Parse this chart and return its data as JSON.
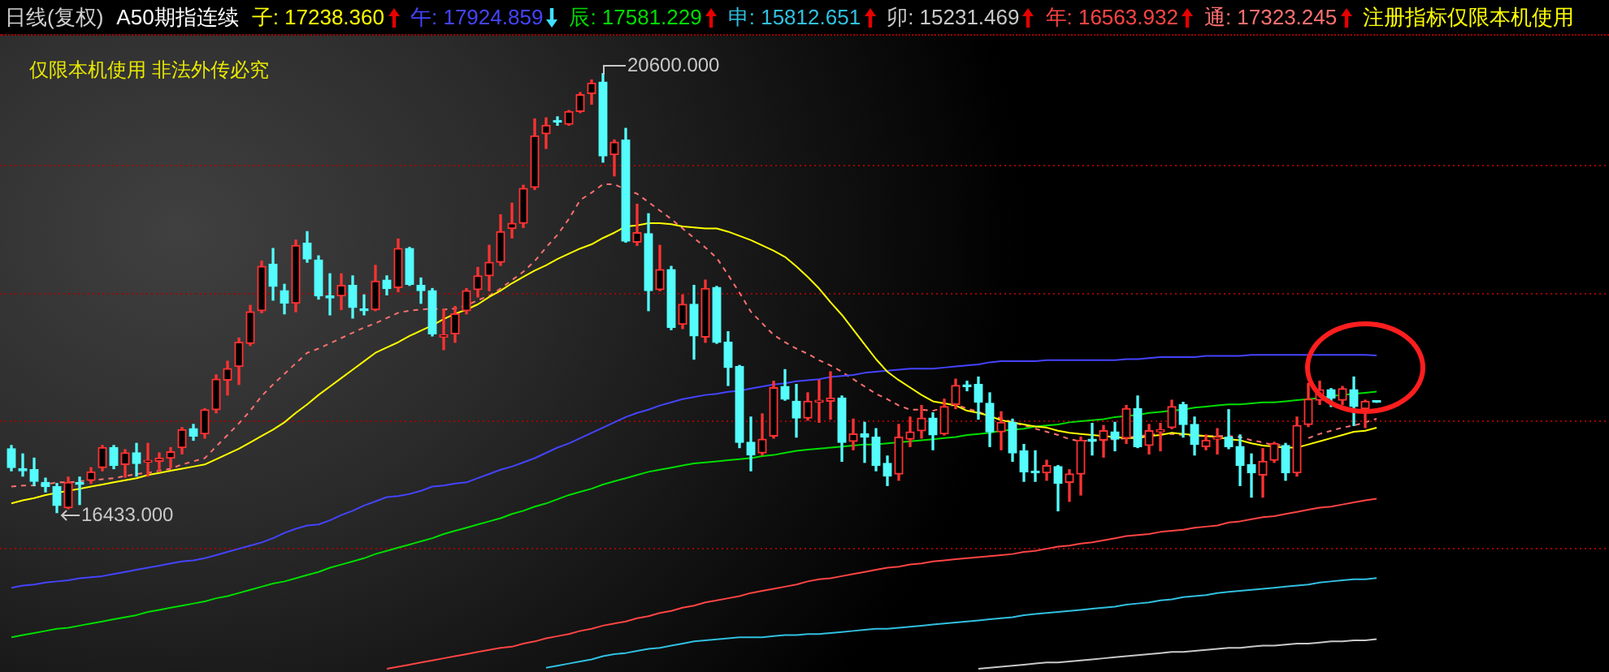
{
  "chart_data": {
    "type": "candlestick",
    "title": "日线(复权)",
    "subtitle": "A50期指连续",
    "categories": [
      null,
      null,
      null,
      null,
      null,
      null,
      null,
      null,
      null,
      null,
      null,
      null,
      null,
      null,
      null,
      null,
      null,
      null,
      null,
      null,
      null,
      null,
      null,
      null,
      null,
      null,
      null,
      null,
      null,
      null,
      null,
      null,
      null,
      null,
      null,
      null,
      null,
      null,
      null,
      null,
      null,
      null,
      null,
      null,
      null,
      null,
      null,
      null,
      null,
      null,
      null,
      null,
      null,
      null,
      null,
      null,
      null,
      null,
      null,
      null,
      null,
      null,
      null,
      null,
      null,
      null,
      null,
      null,
      null,
      null,
      null,
      null,
      null,
      null,
      null,
      null,
      null,
      null,
      null,
      null,
      null,
      null,
      null,
      null,
      null,
      null,
      null,
      null,
      null,
      null,
      null,
      null,
      null,
      null,
      null,
      null,
      null,
      null,
      null,
      null,
      null,
      null,
      null,
      null,
      null,
      null,
      null,
      null,
      null,
      null,
      null,
      null,
      null,
      null,
      null,
      null,
      null,
      null,
      null,
      null,
      null
    ],
    "ohlc": [
      [
        17040,
        17070,
        16830,
        16860
      ],
      [
        16850,
        16990,
        16780,
        16830
      ],
      [
        16840,
        16950,
        16690,
        16730
      ],
      [
        16720,
        16760,
        16630,
        16680
      ],
      [
        16680,
        16710,
        16433,
        16500
      ],
      [
        16480,
        16770,
        16470,
        16720
      ],
      [
        16720,
        16770,
        16510,
        16700
      ],
      [
        16740,
        16860,
        16710,
        16820
      ],
      [
        16860,
        17070,
        16830,
        17050
      ],
      [
        17050,
        17070,
        16850,
        16880
      ],
      [
        16890,
        17030,
        16770,
        17000
      ],
      [
        17000,
        17090,
        16780,
        16900
      ],
      [
        16910,
        17090,
        16780,
        16930
      ],
      [
        16920,
        17000,
        16830,
        16950
      ],
      [
        16950,
        17050,
        16860,
        17010
      ],
      [
        17050,
        17240,
        16990,
        17220
      ],
      [
        17230,
        17270,
        17120,
        17160
      ],
      [
        17180,
        17420,
        17140,
        17410
      ],
      [
        17410,
        17740,
        17380,
        17700
      ],
      [
        17690,
        17870,
        17550,
        17800
      ],
      [
        17820,
        18090,
        17650,
        18050
      ],
      [
        18040,
        18400,
        18020,
        18340
      ],
      [
        18350,
        18820,
        18330,
        18770
      ],
      [
        18790,
        18940,
        18450,
        18580
      ],
      [
        18540,
        18600,
        18320,
        18420
      ],
      [
        18420,
        19020,
        18340,
        18970
      ],
      [
        18990,
        19100,
        18810,
        18840
      ],
      [
        18830,
        18870,
        18460,
        18490
      ],
      [
        18490,
        18700,
        18310,
        18470
      ],
      [
        18490,
        18700,
        18360,
        18590
      ],
      [
        18590,
        18680,
        18280,
        18380
      ],
      [
        18360,
        18500,
        18310,
        18350
      ],
      [
        18360,
        18780,
        18350,
        18630
      ],
      [
        18640,
        18680,
        18500,
        18560
      ],
      [
        18570,
        19030,
        18530,
        18940
      ],
      [
        18940,
        18950,
        18590,
        18600
      ],
      [
        18590,
        18660,
        18420,
        18540
      ],
      [
        18540,
        18560,
        18110,
        18130
      ],
      [
        18100,
        18360,
        17980,
        18120
      ],
      [
        18130,
        18390,
        18050,
        18320
      ],
      [
        18350,
        18560,
        18320,
        18540
      ],
      [
        18550,
        18760,
        18480,
        18680
      ],
      [
        18680,
        18970,
        18540,
        18810
      ],
      [
        18810,
        19260,
        18780,
        19100
      ],
      [
        19130,
        19370,
        19040,
        19180
      ],
      [
        19180,
        19540,
        19140,
        19510
      ],
      [
        19520,
        20170,
        19500,
        20010
      ],
      [
        20030,
        20180,
        19890,
        20110
      ],
      [
        20150,
        20190,
        20110,
        20140
      ],
      [
        20120,
        20250,
        20110,
        20240
      ],
      [
        20240,
        20420,
        20230,
        20400
      ],
      [
        20410,
        20540,
        20310,
        20510
      ],
      [
        20520,
        20600,
        19760,
        19820
      ],
      [
        19830,
        19970,
        19630,
        19950
      ],
      [
        19970,
        20080,
        19000,
        19010
      ],
      [
        19000,
        19360,
        18970,
        19090
      ],
      [
        19080,
        19270,
        18350,
        18540
      ],
      [
        18550,
        18970,
        18540,
        18740
      ],
      [
        18740,
        18770,
        18170,
        18190
      ],
      [
        18220,
        18500,
        18180,
        18410
      ],
      [
        18410,
        18590,
        17890,
        18110
      ],
      [
        18100,
        18640,
        18050,
        18560
      ],
      [
        18570,
        18580,
        18040,
        18050
      ],
      [
        18050,
        18150,
        17640,
        17810
      ],
      [
        17820,
        17830,
        17050,
        17100
      ],
      [
        17100,
        17340,
        16830,
        16980
      ],
      [
        17000,
        17370,
        16980,
        17130
      ],
      [
        17160,
        17680,
        17140,
        17620
      ],
      [
        17630,
        17790,
        17500,
        17510
      ],
      [
        17490,
        17650,
        17150,
        17330
      ],
      [
        17330,
        17570,
        17310,
        17490
      ],
      [
        17480,
        17690,
        17290,
        17500
      ],
      [
        17490,
        17770,
        17320,
        17520
      ],
      [
        17520,
        17540,
        16920,
        17100
      ],
      [
        17110,
        17320,
        17030,
        17180
      ],
      [
        17180,
        17290,
        16910,
        17150
      ],
      [
        17150,
        17230,
        16830,
        16880
      ],
      [
        16900,
        16970,
        16690,
        16780
      ],
      [
        16800,
        17270,
        16740,
        17150
      ],
      [
        17130,
        17340,
        17060,
        17200
      ],
      [
        17210,
        17450,
        17140,
        17330
      ],
      [
        17330,
        17380,
        17030,
        17170
      ],
      [
        17180,
        17510,
        17170,
        17440
      ],
      [
        17460,
        17700,
        17420,
        17640
      ],
      [
        17640,
        17680,
        17590,
        17630
      ],
      [
        17650,
        17720,
        17320,
        17480
      ],
      [
        17470,
        17570,
        17060,
        17200
      ],
      [
        17200,
        17390,
        17030,
        17290
      ],
      [
        17290,
        17320,
        16920,
        17000
      ],
      [
        17020,
        17080,
        16730,
        16820
      ],
      [
        16820,
        17020,
        16730,
        16810
      ],
      [
        16810,
        16930,
        16740,
        16880
      ],
      [
        16870,
        16880,
        16450,
        16710
      ],
      [
        16720,
        16840,
        16540,
        16800
      ],
      [
        16800,
        17150,
        16600,
        17120
      ],
      [
        17130,
        17280,
        16980,
        17110
      ],
      [
        17120,
        17260,
        16960,
        17210
      ],
      [
        17200,
        17290,
        17020,
        17130
      ],
      [
        17140,
        17450,
        17090,
        17420
      ],
      [
        17420,
        17540,
        17050,
        17060
      ],
      [
        17070,
        17270,
        16990,
        17210
      ],
      [
        17200,
        17280,
        17020,
        17220
      ],
      [
        17240,
        17500,
        17230,
        17440
      ],
      [
        17460,
        17480,
        17150,
        17270
      ],
      [
        17270,
        17340,
        16980,
        17080
      ],
      [
        17060,
        17170,
        17030,
        17120
      ],
      [
        17130,
        17230,
        16990,
        17150
      ],
      [
        17150,
        17410,
        17040,
        17060
      ],
      [
        17060,
        17170,
        16690,
        16880
      ],
      [
        16890,
        16990,
        16580,
        16810
      ],
      [
        16790,
        17040,
        16580,
        16920
      ],
      [
        16930,
        17100,
        16910,
        17090
      ],
      [
        17070,
        17090,
        16740,
        16810
      ],
      [
        16810,
        17340,
        16780,
        17260
      ],
      [
        17270,
        17660,
        17250,
        17510
      ],
      [
        17500,
        17680,
        17460,
        17600
      ],
      [
        17600,
        17610,
        17440,
        17520
      ],
      [
        17500,
        17630,
        17460,
        17610
      ],
      [
        17600,
        17720,
        17260,
        17440
      ],
      [
        17420,
        17500,
        17240,
        17490
      ],
      [
        17490,
        17490,
        17480,
        17480
      ]
    ],
    "colors": [
      "#54fcfc",
      "#54fcfc",
      "#54fcfc",
      "#54fcfc",
      "#54fcfc",
      "#ff3232",
      "#54fcfc",
      "#ff3232",
      "#ff3232",
      "#54fcfc",
      "#ff3232",
      "#54fcfc",
      "#ff3232",
      "#ff3232",
      "#ff3232",
      "#ff3232",
      "#54fcfc",
      "#ff3232",
      "#ff3232",
      "#ff3232",
      "#ff3232",
      "#ff3232",
      "#ff3232",
      "#54fcfc",
      "#54fcfc",
      "#ff3232",
      "#54fcfc",
      "#54fcfc",
      "#54fcfc",
      "#ff3232",
      "#54fcfc",
      "#54fcfc",
      "#ff3232",
      "#54fcfc",
      "#ff3232",
      "#54fcfc",
      "#54fcfc",
      "#54fcfc",
      "#ff3232",
      "#ff3232",
      "#ff3232",
      "#ff3232",
      "#ff3232",
      "#ff3232",
      "#ff3232",
      "#ff3232",
      "#ff3232",
      "#ff3232",
      "#54fcfc",
      "#ff3232",
      "#ff3232",
      "#ff3232",
      "#54fcfc",
      "#ff3232",
      "#54fcfc",
      "#ff3232",
      "#54fcfc",
      "#ff3232",
      "#54fcfc",
      "#ff3232",
      "#54fcfc",
      "#ff3232",
      "#54fcfc",
      "#54fcfc",
      "#54fcfc",
      "#54fcfc",
      "#ff3232",
      "#ff3232",
      "#54fcfc",
      "#54fcfc",
      "#ff3232",
      "#ff3232",
      "#ff3232",
      "#54fcfc",
      "#ff3232",
      "#54fcfc",
      "#54fcfc",
      "#54fcfc",
      "#ff3232",
      "#ff3232",
      "#ff3232",
      "#54fcfc",
      "#ff3232",
      "#ff3232",
      "#54fcfc",
      "#54fcfc",
      "#54fcfc",
      "#ff3232",
      "#54fcfc",
      "#54fcfc",
      "#54fcfc",
      "#ff3232",
      "#54fcfc",
      "#ff3232",
      "#ff3232",
      "#54fcfc",
      "#ff3232",
      "#54fcfc",
      "#ff3232",
      "#54fcfc",
      "#ff3232",
      "#ff3232",
      "#ff3232",
      "#54fcfc",
      "#54fcfc",
      "#ff3232",
      "#ff3232",
      "#54fcfc",
      "#54fcfc",
      "#54fcfc",
      "#ff3232",
      "#ff3232",
      "#54fcfc",
      "#ff3232",
      "#ff3232",
      "#ff3232",
      "#54fcfc",
      "#ff3232",
      "#54fcfc",
      "#ff3232",
      "#54fcfc"
    ],
    "series": [
      {
        "name": "子: 17238.360",
        "type": "line",
        "color": "#ffff00",
        "values": [
          16520,
          16550,
          16570,
          16600,
          16620,
          16640,
          16660,
          16680,
          16700,
          16720,
          16740,
          16760,
          16790,
          16810,
          16830,
          16850,
          16870,
          16890,
          16940,
          16990,
          17040,
          17100,
          17160,
          17220,
          17290,
          17380,
          17460,
          17550,
          17630,
          17710,
          17790,
          17870,
          17950,
          18000,
          18050,
          18110,
          18160,
          18210,
          18270,
          18320,
          18360,
          18410,
          18480,
          18540,
          18610,
          18670,
          18730,
          18780,
          18840,
          18890,
          18940,
          18980,
          19040,
          19090,
          19150,
          19160,
          19180,
          19180,
          19170,
          19150,
          19140,
          19130,
          19130,
          19100,
          19060,
          19020,
          18970,
          18920,
          18860,
          18770,
          18670,
          18560,
          18430,
          18310,
          18170,
          18030,
          17890,
          17770,
          17690,
          17620,
          17550,
          17490,
          17470,
          17450,
          17400,
          17380,
          17350,
          17310,
          17290,
          17270,
          17250,
          17240,
          17210,
          17190,
          17180,
          17170,
          17160,
          17150,
          17140,
          17140,
          17160,
          17170,
          17190,
          17180,
          17170,
          17160,
          17150,
          17130,
          17120,
          17090,
          17070,
          17060,
          17050,
          17050,
          17080,
          17110,
          17140,
          17170,
          17200,
          17210,
          17238.36
        ]
      },
      {
        "name": "午: 17924.859",
        "type": "line",
        "color": "#4444ff",
        "values": [
          15720,
          15740,
          15750,
          15770,
          15780,
          15790,
          15810,
          15820,
          15830,
          15850,
          15870,
          15890,
          15910,
          15930,
          15950,
          15970,
          15980,
          16000,
          16030,
          16060,
          16090,
          16120,
          16150,
          16190,
          16240,
          16280,
          16310,
          16320,
          16360,
          16410,
          16450,
          16500,
          16540,
          16580,
          16590,
          16610,
          16640,
          16680,
          16690,
          16710,
          16720,
          16760,
          16800,
          16840,
          16870,
          16910,
          16950,
          17000,
          17050,
          17090,
          17140,
          17190,
          17240,
          17290,
          17340,
          17380,
          17410,
          17450,
          17480,
          17510,
          17530,
          17550,
          17560,
          17580,
          17590,
          17610,
          17630,
          17650,
          17660,
          17680,
          17690,
          17700,
          17720,
          17730,
          17740,
          17760,
          17770,
          17780,
          17790,
          17800,
          17800,
          17800,
          17810,
          17820,
          17830,
          17840,
          17860,
          17870,
          17870,
          17870,
          17870,
          17880,
          17880,
          17880,
          17880,
          17880,
          17880,
          17880,
          17890,
          17890,
          17900,
          17910,
          17910,
          17910,
          17910,
          17920,
          17920,
          17920,
          17920,
          17930,
          17930,
          17930,
          17930,
          17930,
          17930,
          17930,
          17930,
          17930,
          17930,
          17930,
          17924.859
        ]
      },
      {
        "name": "辰: 17581.229",
        "type": "line",
        "color": "#00dd00",
        "values": [
          15250,
          15270,
          15290,
          15310,
          15330,
          15340,
          15360,
          15380,
          15400,
          15420,
          15440,
          15460,
          15490,
          15510,
          15530,
          15550,
          15570,
          15590,
          15620,
          15640,
          15670,
          15700,
          15730,
          15760,
          15780,
          15810,
          15840,
          15870,
          15910,
          15940,
          15970,
          16000,
          16040,
          16070,
          16100,
          16130,
          16160,
          16190,
          16230,
          16260,
          16290,
          16320,
          16350,
          16380,
          16420,
          16450,
          16490,
          16520,
          16560,
          16600,
          16630,
          16660,
          16700,
          16730,
          16760,
          16790,
          16820,
          16840,
          16860,
          16880,
          16900,
          16910,
          16920,
          16930,
          16940,
          16950,
          16970,
          16980,
          17000,
          17020,
          17030,
          17040,
          17050,
          17060,
          17070,
          17080,
          17080,
          17090,
          17100,
          17110,
          17120,
          17130,
          17140,
          17150,
          17170,
          17180,
          17190,
          17210,
          17220,
          17230,
          17250,
          17260,
          17270,
          17290,
          17300,
          17310,
          17320,
          17340,
          17350,
          17360,
          17380,
          17390,
          17400,
          17410,
          17430,
          17440,
          17450,
          17460,
          17460,
          17470,
          17480,
          17480,
          17490,
          17500,
          17510,
          17520,
          17540,
          17550,
          17560,
          17570,
          17581.229
        ]
      },
      {
        "name": "申: 15812.651",
        "type": "line",
        "color": "#30c0e0",
        "values": [
          null,
          null,
          null,
          null,
          null,
          null,
          null,
          null,
          null,
          null,
          null,
          null,
          null,
          null,
          null,
          null,
          null,
          null,
          null,
          null,
          null,
          null,
          null,
          null,
          null,
          null,
          null,
          null,
          null,
          null,
          null,
          null,
          null,
          null,
          null,
          null,
          null,
          null,
          null,
          null,
          null,
          null,
          null,
          null,
          null,
          null,
          null,
          14960,
          14980,
          15000,
          15020,
          15040,
          15070,
          15090,
          15100,
          15120,
          15140,
          15150,
          15170,
          15190,
          15210,
          15220,
          15230,
          15240,
          15250,
          15250,
          15250,
          15260,
          15270,
          15270,
          15280,
          15280,
          15290,
          15300,
          15310,
          15320,
          15330,
          15330,
          15340,
          15350,
          15360,
          15370,
          15380,
          15390,
          15400,
          15410,
          15420,
          15430,
          15440,
          15460,
          15470,
          15480,
          15490,
          15500,
          15510,
          15520,
          15530,
          15540,
          15560,
          15570,
          15580,
          15600,
          15610,
          15630,
          15640,
          15650,
          15670,
          15680,
          15690,
          15700,
          15710,
          15720,
          15730,
          15740,
          15750,
          15770,
          15780,
          15790,
          15800,
          15800,
          15812.651
        ]
      },
      {
        "name": "卯: 15231.469",
        "type": "line",
        "color": "#c8c8c8",
        "values": [
          null,
          null,
          null,
          null,
          null,
          null,
          null,
          null,
          null,
          null,
          null,
          null,
          null,
          null,
          null,
          null,
          null,
          null,
          null,
          null,
          null,
          null,
          null,
          null,
          null,
          null,
          null,
          null,
          null,
          null,
          null,
          null,
          null,
          null,
          null,
          null,
          null,
          null,
          null,
          null,
          null,
          null,
          null,
          null,
          null,
          null,
          null,
          null,
          null,
          null,
          null,
          null,
          null,
          null,
          null,
          null,
          null,
          null,
          null,
          null,
          null,
          null,
          null,
          null,
          null,
          null,
          null,
          null,
          null,
          null,
          null,
          null,
          null,
          null,
          null,
          null,
          null,
          null,
          null,
          null,
          null,
          null,
          null,
          null,
          null,
          14950,
          14960,
          14970,
          14980,
          14990,
          15000,
          15010,
          15010,
          15020,
          15030,
          15040,
          15050,
          15060,
          15070,
          15080,
          15090,
          15100,
          15110,
          15110,
          15120,
          15130,
          15140,
          15150,
          15150,
          15160,
          15170,
          15170,
          15180,
          15190,
          15190,
          15200,
          15210,
          15210,
          15220,
          15220,
          15231.469
        ]
      },
      {
        "name": "年: 16563.932",
        "type": "line",
        "color": "#ff4444",
        "values": [
          null,
          null,
          null,
          null,
          null,
          null,
          null,
          null,
          null,
          null,
          null,
          null,
          null,
          null,
          null,
          null,
          null,
          null,
          null,
          null,
          null,
          null,
          null,
          null,
          null,
          null,
          null,
          null,
          null,
          null,
          null,
          null,
          null,
          14950,
          14970,
          14990,
          15010,
          15030,
          15050,
          15070,
          15090,
          15110,
          15130,
          15150,
          15160,
          15190,
          15210,
          15240,
          15260,
          15280,
          15310,
          15330,
          15360,
          15380,
          15400,
          15430,
          15450,
          15480,
          15500,
          15530,
          15550,
          15580,
          15600,
          15620,
          15640,
          15670,
          15690,
          15710,
          15730,
          15750,
          15780,
          15800,
          15810,
          15830,
          15850,
          15870,
          15890,
          15910,
          15920,
          15940,
          15950,
          15970,
          15980,
          15990,
          16000,
          16010,
          16020,
          16030,
          16040,
          16060,
          16070,
          16090,
          16110,
          16120,
          16140,
          16150,
          16170,
          16190,
          16210,
          16220,
          16230,
          16250,
          16260,
          16270,
          16290,
          16300,
          16310,
          16340,
          16350,
          16370,
          16390,
          16400,
          16420,
          16440,
          16460,
          16480,
          16490,
          16510,
          16530,
          16550,
          16563.932
        ]
      },
      {
        "name": "通: 17323.245",
        "type": "line",
        "color": "#ff7070",
        "line_style": "dashed",
        "values": [
          16680,
          16690,
          16690,
          16700,
          16720,
          16720,
          16730,
          16740,
          16750,
          16760,
          16780,
          16800,
          16810,
          16830,
          16850,
          16890,
          16920,
          16950,
          17060,
          17170,
          17280,
          17400,
          17540,
          17650,
          17750,
          17850,
          17950,
          17990,
          18040,
          18090,
          18140,
          18190,
          18230,
          18280,
          18330,
          18350,
          18360,
          18370,
          18360,
          18370,
          18400,
          18450,
          18490,
          18560,
          18640,
          18720,
          18820,
          18950,
          19070,
          19220,
          19400,
          19470,
          19550,
          19550,
          19500,
          19460,
          19380,
          19300,
          19220,
          19130,
          19040,
          18950,
          18850,
          18690,
          18520,
          18340,
          18230,
          18120,
          18050,
          17990,
          17940,
          17880,
          17830,
          17770,
          17700,
          17630,
          17560,
          17510,
          17450,
          17410,
          17410,
          17400,
          17430,
          17460,
          17420,
          17390,
          17350,
          17330,
          17290,
          17260,
          17230,
          17200,
          17170,
          17130,
          17110,
          17120,
          17120,
          17130,
          17140,
          17160,
          17170,
          17180,
          17180,
          17170,
          17160,
          17160,
          17160,
          17160,
          17150,
          17120,
          17100,
          17070,
          17080,
          null,
          17140,
          17180,
          17210,
          17240,
          17260,
          17290,
          17323.245
        ]
      }
    ],
    "ylim": [
      14920,
      20960
    ],
    "yticks": [
      {
        "value": 16090,
        "label": null
      },
      {
        "value": 17300,
        "label": null
      },
      {
        "value": 18510,
        "label": null
      },
      {
        "value": 19730,
        "label": null
      }
    ],
    "grid": "y",
    "tick_labels": false,
    "annotations": [
      "注册指标仅限本机使用",
      "仅限本机使用 非法外传必究",
      "20600.000",
      "16433.000"
    ]
  }
}
